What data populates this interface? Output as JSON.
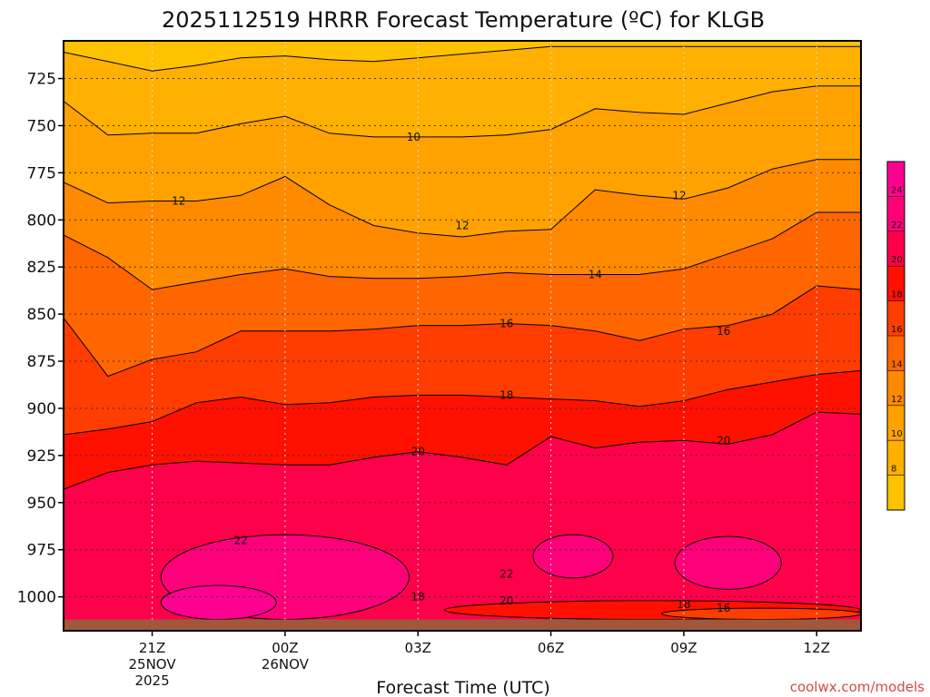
{
  "chart_data": {
    "type": "heatmap",
    "title": "2025112519 HRRR Forecast Temperature (ºC) for KLGB",
    "xlabel": "Forecast Time (UTC)",
    "ylabel": "",
    "credit": "coolwx.com/models",
    "x_ticks": [
      {
        "hour": 2,
        "lines": [
          "21Z",
          "25NOV",
          "2025"
        ]
      },
      {
        "hour": 5,
        "lines": [
          "00Z",
          "26NOV"
        ]
      },
      {
        "hour": 8,
        "lines": [
          "03Z"
        ]
      },
      {
        "hour": 11,
        "lines": [
          "06Z"
        ]
      },
      {
        "hour": 14,
        "lines": [
          "09Z"
        ]
      },
      {
        "hour": 17,
        "lines": [
          "12Z"
        ]
      }
    ],
    "xlim": [
      0,
      18
    ],
    "y_ticks": [
      725,
      750,
      775,
      800,
      825,
      850,
      875,
      900,
      925,
      950,
      975,
      1000
    ],
    "ylim": [
      1018,
      705
    ],
    "y_scale": "pressure (hPa), inverted",
    "grid": true,
    "surface_pressure_hpa": 1012,
    "colorbar": {
      "position": "right",
      "ticks": [
        8,
        10,
        12,
        14,
        16,
        18,
        20,
        22,
        24
      ],
      "bands": [
        {
          "from": 6,
          "to": 8,
          "color": "#ffc200"
        },
        {
          "from": 8,
          "to": 10,
          "color": "#ffb000"
        },
        {
          "from": 10,
          "to": 12,
          "color": "#ffa200"
        },
        {
          "from": 12,
          "to": 14,
          "color": "#ff8a00"
        },
        {
          "from": 14,
          "to": 16,
          "color": "#ff6600"
        },
        {
          "from": 16,
          "to": 18,
          "color": "#ff3d00"
        },
        {
          "from": 18,
          "to": 20,
          "color": "#ff1000"
        },
        {
          "from": 20,
          "to": 22,
          "color": "#ff004a"
        },
        {
          "from": 22,
          "to": 24,
          "color": "#ff007a"
        },
        {
          "from": 24,
          "to": 26,
          "color": "#ff0090"
        }
      ]
    },
    "hours": [
      0,
      1,
      2,
      3,
      4,
      5,
      6,
      7,
      8,
      9,
      10,
      11,
      12,
      13,
      14,
      15,
      16,
      17,
      18
    ],
    "isotherms": [
      {
        "level": 8,
        "pressures": [
          711,
          716,
          721,
          718,
          714,
          713,
          715,
          716,
          714,
          712,
          710,
          708,
          708,
          708,
          708,
          708,
          708,
          708,
          708
        ]
      },
      {
        "level": 10,
        "pressures": [
          737,
          755,
          754,
          754,
          749,
          745,
          754,
          756,
          756,
          756,
          755,
          752,
          741,
          743,
          744,
          738,
          732,
          729,
          729
        ]
      },
      {
        "level": 12,
        "pressures": [
          780,
          791,
          790,
          790,
          787,
          777,
          792,
          803,
          807,
          809,
          806,
          805,
          784,
          787,
          789,
          783,
          773,
          768,
          768
        ]
      },
      {
        "level": 14,
        "pressures": [
          808,
          820,
          837,
          833,
          829,
          826,
          830,
          831,
          831,
          830,
          828,
          829,
          829,
          829,
          826,
          818,
          810,
          796,
          796
        ]
      },
      {
        "level": 16,
        "pressures": [
          852,
          883,
          874,
          870,
          859,
          859,
          859,
          858,
          856,
          856,
          855,
          856,
          859,
          864,
          858,
          856,
          850,
          835,
          837
        ]
      },
      {
        "level": 18,
        "pressures": [
          914,
          911,
          907,
          897,
          894,
          898,
          897,
          894,
          893,
          893,
          894,
          895,
          896,
          899,
          896,
          890,
          886,
          882,
          880
        ]
      },
      {
        "level": 20,
        "pressures": [
          943,
          934,
          930,
          928,
          929,
          930,
          930,
          926,
          923,
          926,
          930,
          915,
          921,
          918,
          917,
          919,
          914,
          902,
          903
        ]
      }
    ],
    "cells": [
      {
        "level": 22,
        "hour_range": [
          2.2,
          7.8
        ],
        "pressure_range": [
          967,
          1012
        ]
      },
      {
        "level": 22,
        "hour_range": [
          10.6,
          12.4
        ],
        "pressure_range": [
          967,
          990
        ]
      },
      {
        "level": 22,
        "hour_range": [
          13.8,
          16.2
        ],
        "pressure_range": [
          968,
          996
        ]
      },
      {
        "level": 24,
        "hour_range": [
          2.2,
          4.8
        ],
        "pressure_range": [
          994,
          1012
        ]
      },
      {
        "level": 18,
        "hour_range": [
          8.6,
          18
        ],
        "pressure_range": [
          1002,
          1012
        ]
      },
      {
        "level": 16,
        "hour_range": [
          13.5,
          18
        ],
        "pressure_range": [
          1006,
          1012
        ]
      }
    ],
    "contour_labels": [
      {
        "text": "10",
        "hour": 7.9,
        "pressure": 756
      },
      {
        "text": "12",
        "hour": 2.6,
        "pressure": 790
      },
      {
        "text": "12",
        "hour": 9.0,
        "pressure": 803
      },
      {
        "text": "12",
        "hour": 13.9,
        "pressure": 787
      },
      {
        "text": "14",
        "hour": 12.0,
        "pressure": 829
      },
      {
        "text": "16",
        "hour": 10.0,
        "pressure": 855
      },
      {
        "text": "16",
        "hour": 14.9,
        "pressure": 859
      },
      {
        "text": "18",
        "hour": 10.0,
        "pressure": 893
      },
      {
        "text": "20",
        "hour": 8.0,
        "pressure": 923
      },
      {
        "text": "20",
        "hour": 14.9,
        "pressure": 917
      },
      {
        "text": "22",
        "hour": 4.0,
        "pressure": 970
      },
      {
        "text": "22",
        "hour": 10.0,
        "pressure": 988
      },
      {
        "text": "20",
        "hour": 10.0,
        "pressure": 1002
      },
      {
        "text": "18",
        "hour": 8.0,
        "pressure": 1000
      },
      {
        "text": "18",
        "hour": 14.0,
        "pressure": 1004
      },
      {
        "text": "16",
        "hour": 14.9,
        "pressure": 1006
      }
    ]
  }
}
